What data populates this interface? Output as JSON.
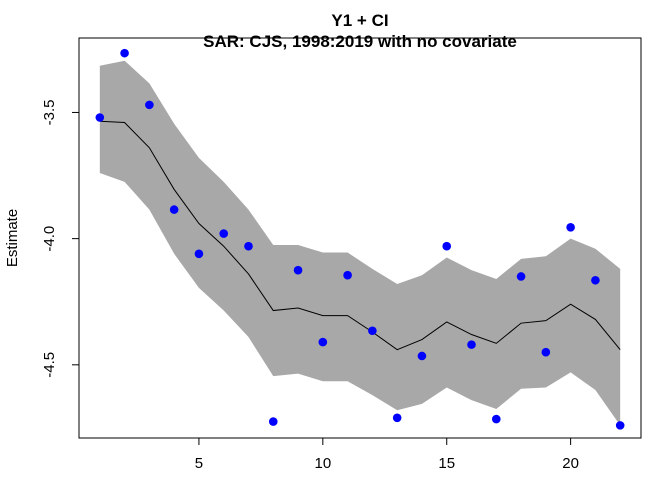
{
  "chart_data": {
    "type": "line",
    "title": "Y1 + CI",
    "subtitle": "SAR: CJS, 1998:2019 with no covariate",
    "xlabel": "",
    "ylabel": "Estimate",
    "xlim": [
      0.16,
      22.84
    ],
    "ylim": [
      -4.79,
      -3.205
    ],
    "x_ticks": [
      5,
      10,
      15,
      20
    ],
    "y_ticks": [
      -3.5,
      -4.0,
      -4.5
    ],
    "x_tick_labels": [
      "5",
      "10",
      "15",
      "20"
    ],
    "y_tick_labels": [
      "-3.5",
      "-4.0",
      "-4.5"
    ],
    "x": [
      1,
      2,
      3,
      4,
      5,
      6,
      7,
      8,
      9,
      10,
      11,
      12,
      13,
      14,
      15,
      16,
      17,
      18,
      19,
      20,
      21,
      22
    ],
    "series": [
      {
        "kind": "ci_band",
        "color": "#a8a8a8",
        "lower": [
          -3.74,
          -3.775,
          -3.885,
          -4.06,
          -4.195,
          -4.285,
          -4.39,
          -4.545,
          -4.535,
          -4.565,
          -4.565,
          -4.62,
          -4.68,
          -4.655,
          -4.59,
          -4.64,
          -4.675,
          -4.595,
          -4.59,
          -4.53,
          -4.6,
          -4.74
        ],
        "upper": [
          -3.315,
          -3.295,
          -3.385,
          -3.545,
          -3.68,
          -3.775,
          -3.885,
          -4.025,
          -4.025,
          -4.055,
          -4.055,
          -4.12,
          -4.18,
          -4.145,
          -4.075,
          -4.125,
          -4.16,
          -4.08,
          -4.07,
          -4.0,
          -4.04,
          -4.12
        ]
      },
      {
        "kind": "line",
        "color": "#000000",
        "values": [
          -3.535,
          -3.54,
          -3.64,
          -3.805,
          -3.94,
          -4.03,
          -4.14,
          -4.285,
          -4.275,
          -4.305,
          -4.305,
          -4.37,
          -4.44,
          -4.4,
          -4.33,
          -4.38,
          -4.415,
          -4.335,
          -4.325,
          -4.26,
          -4.32,
          -4.44
        ]
      },
      {
        "kind": "points",
        "color": "#0000ff",
        "values": [
          -3.52,
          -3.265,
          -3.47,
          -3.885,
          -4.06,
          -3.98,
          -4.03,
          -4.725,
          -4.125,
          -4.41,
          -4.145,
          -4.365,
          -4.71,
          -4.465,
          -4.03,
          -4.42,
          -4.715,
          -4.15,
          -4.45,
          -3.955,
          -4.165,
          -4.74
        ]
      }
    ]
  }
}
